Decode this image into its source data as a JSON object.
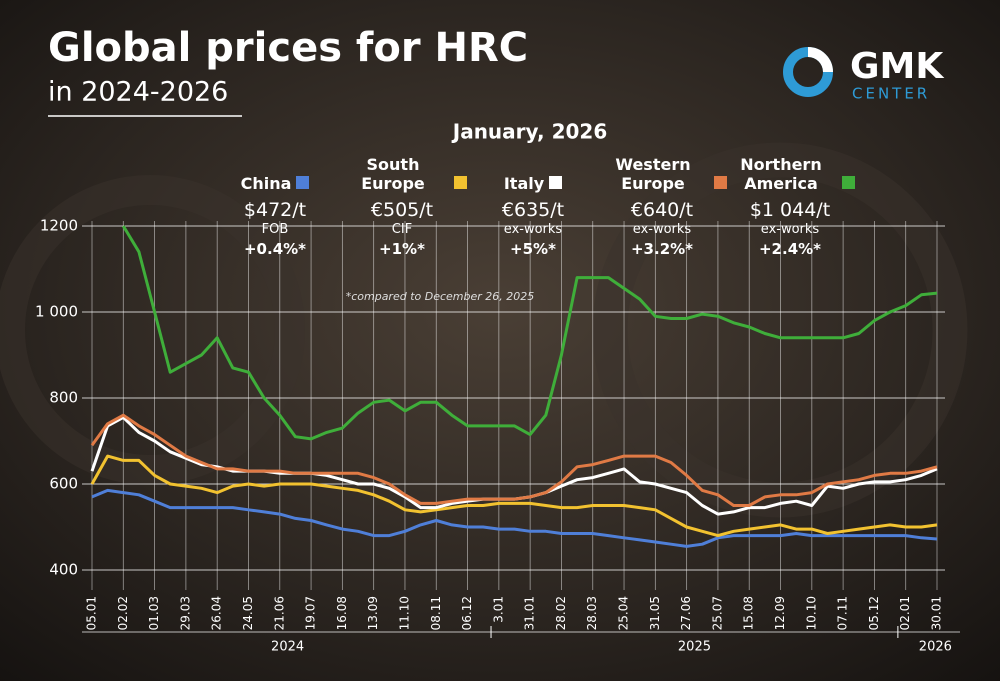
{
  "title": "Global prices for HRC",
  "subtitle": "in 2024-2026",
  "brand": {
    "name": "GMK",
    "sub": "CENTER"
  },
  "chart_data": {
    "type": "line",
    "period": "January, 2026",
    "note": "*compared to December 26, 2025",
    "categories": [
      "05.01",
      null,
      "02.02",
      null,
      "01.03",
      null,
      "29.03",
      null,
      "26.04",
      null,
      "24.05",
      null,
      "21.06",
      null,
      "19.07",
      null,
      "16.08",
      null,
      "13.09",
      null,
      "11.10",
      null,
      "08.11",
      null,
      "06.12",
      null,
      "3.01",
      null,
      "31.01",
      null,
      "28.02",
      null,
      "28.03",
      null,
      "25.04",
      null,
      "31.05",
      null,
      "27.06",
      null,
      "25.07",
      null,
      "15.08",
      null,
      "12.09",
      null,
      "10.10",
      null,
      "07.11",
      null,
      "05.12",
      null,
      "02.01",
      null,
      "30.01"
    ],
    "groups": [
      {
        "label": "2024",
        "span": [
          0,
          25
        ]
      },
      {
        "label": "2025",
        "span": [
          26,
          51
        ]
      },
      {
        "label": "2026",
        "span": [
          52,
          54
        ]
      }
    ],
    "ylim": [
      400,
      1200
    ],
    "yticks": [
      400,
      600,
      800,
      {
        "value": 1000,
        "label": "1 000"
      },
      1200
    ],
    "grid": true,
    "series": [
      {
        "name": "China",
        "color": "#4f7fd8",
        "price": "$472/t",
        "basis": "FOB",
        "change": "+0.4%*",
        "values": [
          570,
          585,
          580,
          575,
          560,
          545,
          545,
          545,
          545,
          545,
          540,
          535,
          530,
          520,
          515,
          505,
          495,
          490,
          480,
          480,
          490,
          505,
          515,
          505,
          500,
          500,
          495,
          495,
          490,
          490,
          485,
          485,
          485,
          480,
          475,
          470,
          465,
          460,
          455,
          460,
          475,
          480,
          480,
          480,
          480,
          485,
          480,
          480,
          480,
          480,
          480,
          480,
          480,
          475,
          472
        ]
      },
      {
        "name": "South Europe",
        "color": "#f2c230",
        "price": "€505/t",
        "basis": "CIF",
        "change": "+1%*",
        "values": [
          600,
          665,
          655,
          655,
          620,
          600,
          595,
          590,
          580,
          595,
          600,
          595,
          600,
          600,
          600,
          595,
          590,
          585,
          575,
          560,
          540,
          535,
          540,
          545,
          550,
          550,
          555,
          555,
          555,
          550,
          545,
          545,
          550,
          550,
          550,
          545,
          540,
          520,
          500,
          490,
          480,
          490,
          495,
          500,
          505,
          495,
          495,
          485,
          490,
          495,
          500,
          505,
          500,
          500,
          505
        ]
      },
      {
        "name": "Italy",
        "color": "#ffffff",
        "price": "€635/t",
        "basis": "ex-works",
        "change": "+5%*",
        "values": [
          630,
          735,
          755,
          720,
          700,
          675,
          660,
          645,
          640,
          630,
          630,
          630,
          625,
          625,
          625,
          620,
          610,
          600,
          600,
          590,
          570,
          545,
          545,
          555,
          560,
          565,
          565,
          565,
          570,
          580,
          595,
          610,
          615,
          625,
          635,
          605,
          600,
          590,
          580,
          550,
          530,
          535,
          545,
          545,
          555,
          560,
          550,
          595,
          590,
          600,
          605,
          605,
          610,
          620,
          635
        ]
      },
      {
        "name": "Western Europe",
        "color": "#e07a45",
        "price": "€640/t",
        "basis": "ex-works",
        "change": "+3.2%*",
        "values": [
          690,
          740,
          760,
          735,
          715,
          690,
          665,
          650,
          635,
          635,
          630,
          630,
          630,
          625,
          625,
          625,
          625,
          625,
          615,
          600,
          575,
          555,
          555,
          560,
          565,
          565,
          565,
          565,
          570,
          580,
          605,
          640,
          645,
          655,
          665,
          665,
          665,
          650,
          620,
          585,
          575,
          550,
          550,
          570,
          575,
          575,
          580,
          600,
          605,
          610,
          620,
          625,
          625,
          630,
          640
        ]
      },
      {
        "name": "Northern America",
        "color": "#3fae3a",
        "price": "$1 044/t",
        "basis": "ex-works",
        "change": "+2.4%*",
        "values": [
          null,
          null,
          1200,
          1140,
          1000,
          860,
          880,
          900,
          940,
          870,
          860,
          800,
          760,
          710,
          705,
          720,
          730,
          765,
          790,
          795,
          770,
          790,
          790,
          760,
          735,
          735,
          735,
          735,
          715,
          760,
          900,
          1080,
          1080,
          1080,
          1055,
          1030,
          990,
          985,
          985,
          995,
          990,
          975,
          965,
          950,
          940,
          940,
          940,
          940,
          940,
          950,
          980,
          1000,
          1015,
          1040,
          1044
        ]
      }
    ]
  }
}
